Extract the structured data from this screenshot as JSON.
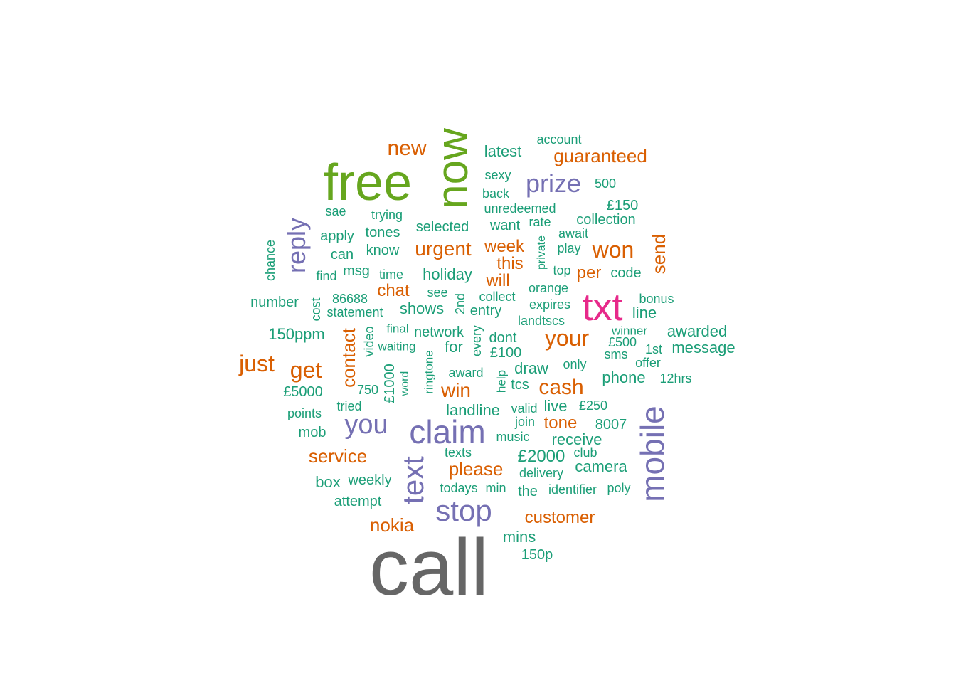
{
  "palette": {
    "gray": "#666666",
    "green": "#66a61e",
    "magenta": "#e7298a",
    "purple": "#7570b3",
    "orange": "#d95f02",
    "teal": "#1b9e77"
  },
  "words": [
    {
      "text": "call",
      "color": "gray",
      "weight": 10
    },
    {
      "text": "free",
      "color": "green",
      "weight": 8
    },
    {
      "text": "now",
      "color": "green",
      "weight": 8
    },
    {
      "text": "txt",
      "color": "magenta",
      "weight": 7
    },
    {
      "text": "claim",
      "color": "purple",
      "weight": 6
    },
    {
      "text": "mobile",
      "color": "purple",
      "weight": 6
    },
    {
      "text": "text",
      "color": "purple",
      "weight": 6
    },
    {
      "text": "stop",
      "color": "purple",
      "weight": 6
    },
    {
      "text": "you",
      "color": "purple",
      "weight": 5
    },
    {
      "text": "prize",
      "color": "purple",
      "weight": 5
    },
    {
      "text": "reply",
      "color": "purple",
      "weight": 5
    },
    {
      "text": "your",
      "color": "orange",
      "weight": 4
    },
    {
      "text": "won",
      "color": "orange",
      "weight": 4
    },
    {
      "text": "just",
      "color": "orange",
      "weight": 4
    },
    {
      "text": "get",
      "color": "orange",
      "weight": 4
    },
    {
      "text": "cash",
      "color": "orange",
      "weight": 4
    },
    {
      "text": "urgent",
      "color": "orange",
      "weight": 4
    },
    {
      "text": "new",
      "color": "orange",
      "weight": 4
    },
    {
      "text": "contact",
      "color": "orange",
      "weight": 3
    },
    {
      "text": "send",
      "color": "orange",
      "weight": 3
    },
    {
      "text": "service",
      "color": "orange",
      "weight": 3
    },
    {
      "text": "please",
      "color": "orange",
      "weight": 3
    },
    {
      "text": "nokia",
      "color": "orange",
      "weight": 3
    },
    {
      "text": "customer",
      "color": "orange",
      "weight": 3
    },
    {
      "text": "guaranteed",
      "color": "orange",
      "weight": 3
    },
    {
      "text": "win",
      "color": "orange",
      "weight": 3
    },
    {
      "text": "week",
      "color": "orange",
      "weight": 3
    },
    {
      "text": "this",
      "color": "orange",
      "weight": 3
    },
    {
      "text": "will",
      "color": "orange",
      "weight": 3
    },
    {
      "text": "per",
      "color": "orange",
      "weight": 3
    },
    {
      "text": "chat",
      "color": "orange",
      "weight": 3
    },
    {
      "text": "tone",
      "color": "orange",
      "weight": 3
    },
    {
      "text": "latest",
      "color": "teal",
      "weight": 2
    },
    {
      "text": "account",
      "color": "teal",
      "weight": 1
    },
    {
      "text": "sexy",
      "color": "teal",
      "weight": 1
    },
    {
      "text": "back",
      "color": "teal",
      "weight": 1
    },
    {
      "text": "500",
      "color": "teal",
      "weight": 1
    },
    {
      "text": "unredeemed",
      "color": "teal",
      "weight": 1
    },
    {
      "text": "£150",
      "color": "teal",
      "weight": 2
    },
    {
      "text": "sae",
      "color": "teal",
      "weight": 1
    },
    {
      "text": "trying",
      "color": "teal",
      "weight": 1
    },
    {
      "text": "collection",
      "color": "teal",
      "weight": 2
    },
    {
      "text": "selected",
      "color": "teal",
      "weight": 2
    },
    {
      "text": "want",
      "color": "teal",
      "weight": 2
    },
    {
      "text": "rate",
      "color": "teal",
      "weight": 1
    },
    {
      "text": "await",
      "color": "teal",
      "weight": 1
    },
    {
      "text": "apply",
      "color": "teal",
      "weight": 2
    },
    {
      "text": "tones",
      "color": "teal",
      "weight": 2
    },
    {
      "text": "private",
      "color": "teal",
      "weight": 1
    },
    {
      "text": "play",
      "color": "teal",
      "weight": 1
    },
    {
      "text": "chance",
      "color": "teal",
      "weight": 1
    },
    {
      "text": "can",
      "color": "teal",
      "weight": 2
    },
    {
      "text": "know",
      "color": "teal",
      "weight": 2
    },
    {
      "text": "top",
      "color": "teal",
      "weight": 1
    },
    {
      "text": "code",
      "color": "teal",
      "weight": 2
    },
    {
      "text": "find",
      "color": "teal",
      "weight": 1
    },
    {
      "text": "msg",
      "color": "teal",
      "weight": 2
    },
    {
      "text": "time",
      "color": "teal",
      "weight": 1
    },
    {
      "text": "holiday",
      "color": "teal",
      "weight": 2
    },
    {
      "text": "orange",
      "color": "teal",
      "weight": 1
    },
    {
      "text": "see",
      "color": "teal",
      "weight": 1
    },
    {
      "text": "collect",
      "color": "teal",
      "weight": 1
    },
    {
      "text": "bonus",
      "color": "teal",
      "weight": 1
    },
    {
      "text": "number",
      "color": "teal",
      "weight": 2
    },
    {
      "text": "cost",
      "color": "teal",
      "weight": 1
    },
    {
      "text": "86688",
      "color": "teal",
      "weight": 1
    },
    {
      "text": "2nd",
      "color": "teal",
      "weight": 1
    },
    {
      "text": "expires",
      "color": "teal",
      "weight": 1
    },
    {
      "text": "line",
      "color": "teal",
      "weight": 2
    },
    {
      "text": "statement",
      "color": "teal",
      "weight": 1
    },
    {
      "text": "shows",
      "color": "teal",
      "weight": 2
    },
    {
      "text": "entry",
      "color": "teal",
      "weight": 2
    },
    {
      "text": "landtscs",
      "color": "teal",
      "weight": 1
    },
    {
      "text": "winner",
      "color": "teal",
      "weight": 1
    },
    {
      "text": "awarded",
      "color": "teal",
      "weight": 2
    },
    {
      "text": "150ppm",
      "color": "teal",
      "weight": 2
    },
    {
      "text": "video",
      "color": "teal",
      "weight": 1
    },
    {
      "text": "final",
      "color": "teal",
      "weight": 1
    },
    {
      "text": "network",
      "color": "teal",
      "weight": 1
    },
    {
      "text": "every",
      "color": "teal",
      "weight": 1
    },
    {
      "text": "dont",
      "color": "teal",
      "weight": 1
    },
    {
      "text": "£500",
      "color": "teal",
      "weight": 1
    },
    {
      "text": "1st",
      "color": "teal",
      "weight": 1
    },
    {
      "text": "message",
      "color": "teal",
      "weight": 2
    },
    {
      "text": "waiting",
      "color": "teal",
      "weight": 1
    },
    {
      "text": "for",
      "color": "teal",
      "weight": 2
    },
    {
      "text": "sms",
      "color": "teal",
      "weight": 1
    },
    {
      "text": "£100",
      "color": "teal",
      "weight": 1
    },
    {
      "text": "offer",
      "color": "teal",
      "weight": 1
    },
    {
      "text": "ringtone",
      "color": "teal",
      "weight": 1
    },
    {
      "text": "draw",
      "color": "teal",
      "weight": 2
    },
    {
      "text": "only",
      "color": "teal",
      "weight": 1
    },
    {
      "text": "£1000",
      "color": "teal",
      "weight": 2
    },
    {
      "text": "award",
      "color": "teal",
      "weight": 1
    },
    {
      "text": "phone",
      "color": "teal",
      "weight": 2
    },
    {
      "text": "12hrs",
      "color": "teal",
      "weight": 1
    },
    {
      "text": "word",
      "color": "teal",
      "weight": 1
    },
    {
      "text": "help",
      "color": "teal",
      "weight": 1
    },
    {
      "text": "tcs",
      "color": "teal",
      "weight": 2
    },
    {
      "text": "£5000",
      "color": "teal",
      "weight": 1
    },
    {
      "text": "750",
      "color": "teal",
      "weight": 1
    },
    {
      "text": "tried",
      "color": "teal",
      "weight": 1
    },
    {
      "text": "landline",
      "color": "teal",
      "weight": 2
    },
    {
      "text": "valid",
      "color": "teal",
      "weight": 1
    },
    {
      "text": "live",
      "color": "teal",
      "weight": 2
    },
    {
      "text": "£250",
      "color": "teal",
      "weight": 1
    },
    {
      "text": "points",
      "color": "teal",
      "weight": 1
    },
    {
      "text": "join",
      "color": "teal",
      "weight": 1
    },
    {
      "text": "8007",
      "color": "teal",
      "weight": 1
    },
    {
      "text": "mob",
      "color": "teal",
      "weight": 1
    },
    {
      "text": "music",
      "color": "teal",
      "weight": 1
    },
    {
      "text": "receive",
      "color": "teal",
      "weight": 2
    },
    {
      "text": "texts",
      "color": "teal",
      "weight": 1
    },
    {
      "text": "£2000",
      "color": "teal",
      "weight": 2
    },
    {
      "text": "club",
      "color": "teal",
      "weight": 1
    },
    {
      "text": "camera",
      "color": "teal",
      "weight": 2
    },
    {
      "text": "delivery",
      "color": "teal",
      "weight": 1
    },
    {
      "text": "box",
      "color": "teal",
      "weight": 2
    },
    {
      "text": "weekly",
      "color": "teal",
      "weight": 1
    },
    {
      "text": "todays",
      "color": "teal",
      "weight": 1
    },
    {
      "text": "min",
      "color": "teal",
      "weight": 1
    },
    {
      "text": "the",
      "color": "teal",
      "weight": 2
    },
    {
      "text": "identifier",
      "color": "teal",
      "weight": 1
    },
    {
      "text": "poly",
      "color": "teal",
      "weight": 1
    },
    {
      "text": "attempt",
      "color": "teal",
      "weight": 1
    },
    {
      "text": "mins",
      "color": "teal",
      "weight": 2
    },
    {
      "text": "150p",
      "color": "teal",
      "weight": 1
    }
  ]
}
